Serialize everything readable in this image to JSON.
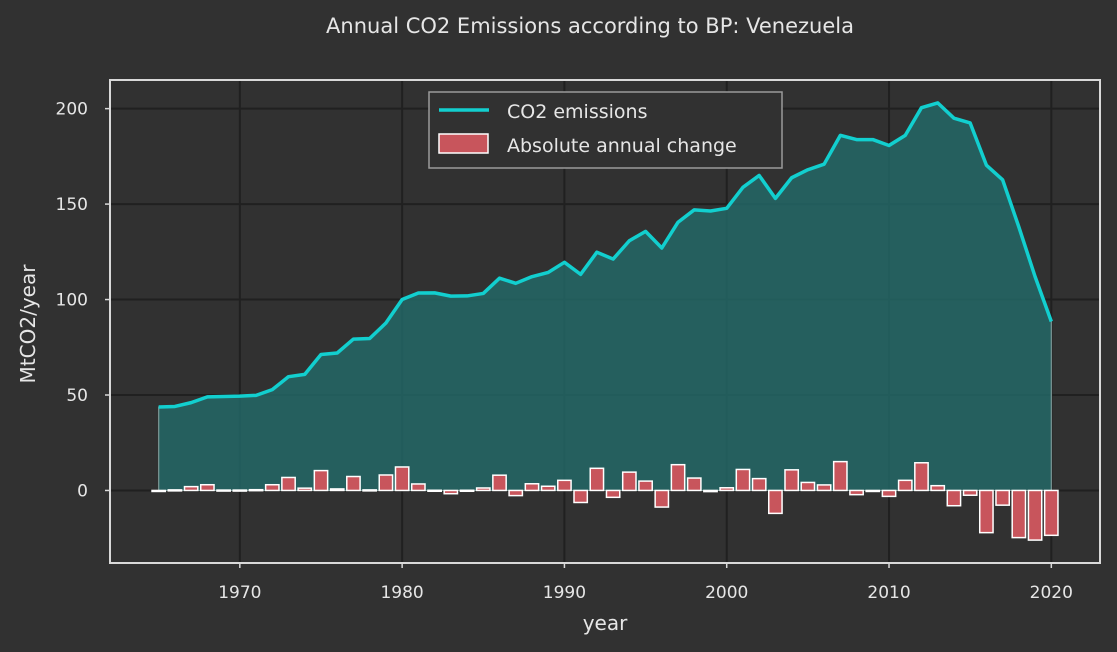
{
  "chart_data": {
    "type": "line",
    "title": "Annual CO2 Emissions according to BP: Venezuela",
    "xlabel": "year",
    "ylabel": "MtCO2/year",
    "xlim": [
      1962,
      2023
    ],
    "ylim": [
      -38,
      215
    ],
    "xticks": [
      1970,
      1980,
      1990,
      2000,
      2010,
      2020
    ],
    "yticks": [
      0,
      50,
      100,
      150,
      200
    ],
    "grid": true,
    "legend_position": "top-center",
    "colors": {
      "background": "#313131",
      "line": "#12cfcf",
      "area": "#236766",
      "bar": "#c8555c",
      "bar_edge": "#ffffff",
      "grid": "#202020",
      "frame": "#d9d9d9"
    },
    "x": [
      1965,
      1966,
      1967,
      1968,
      1969,
      1970,
      1971,
      1972,
      1973,
      1974,
      1975,
      1976,
      1977,
      1978,
      1979,
      1980,
      1981,
      1982,
      1983,
      1984,
      1985,
      1986,
      1987,
      1988,
      1989,
      1990,
      1991,
      1992,
      1993,
      1994,
      1995,
      1996,
      1997,
      1998,
      1999,
      2000,
      2001,
      2002,
      2003,
      2004,
      2005,
      2006,
      2007,
      2008,
      2009,
      2010,
      2011,
      2012,
      2013,
      2014,
      2015,
      2016,
      2017,
      2018,
      2019,
      2020
    ],
    "series": [
      {
        "name": "CO2 emissions",
        "kind": "line_area",
        "values": [
          43.7,
          44.0,
          46.0,
          49.0,
          49.2,
          49.4,
          49.8,
          52.8,
          59.6,
          60.8,
          71.2,
          72.0,
          79.3,
          79.6,
          87.7,
          100.0,
          103.4,
          103.5,
          101.8,
          101.9,
          103.2,
          111.2,
          108.5,
          112.0,
          114.2,
          119.5,
          113.2,
          124.8,
          121.2,
          130.8,
          135.7,
          127.0,
          140.5,
          147.0,
          146.4,
          147.8,
          158.8,
          165.0,
          153.0,
          163.8,
          168.0,
          170.9,
          186.0,
          183.8,
          183.8,
          180.7,
          186.0,
          200.5,
          203.0,
          195.0,
          192.5,
          170.4,
          162.7,
          138.0,
          112.0,
          88.5
        ]
      },
      {
        "name": "Absolute annual change",
        "kind": "bar",
        "values": [
          0,
          0.3,
          2.0,
          3.0,
          0.2,
          0.2,
          0.4,
          3.0,
          6.8,
          1.2,
          10.4,
          0.8,
          7.3,
          0.3,
          8.1,
          12.3,
          3.4,
          0.1,
          -1.7,
          0.1,
          1.3,
          8.0,
          -2.7,
          3.5,
          2.2,
          5.3,
          -6.3,
          11.6,
          -3.6,
          9.6,
          4.9,
          -8.7,
          13.5,
          6.5,
          -0.6,
          1.4,
          11.0,
          6.2,
          -12.0,
          10.8,
          4.2,
          2.9,
          15.1,
          -2.2,
          0,
          -3.1,
          5.3,
          14.5,
          2.5,
          -8.0,
          -2.5,
          -22.1,
          -7.7,
          -24.7,
          -26.0,
          -23.5
        ]
      }
    ]
  }
}
